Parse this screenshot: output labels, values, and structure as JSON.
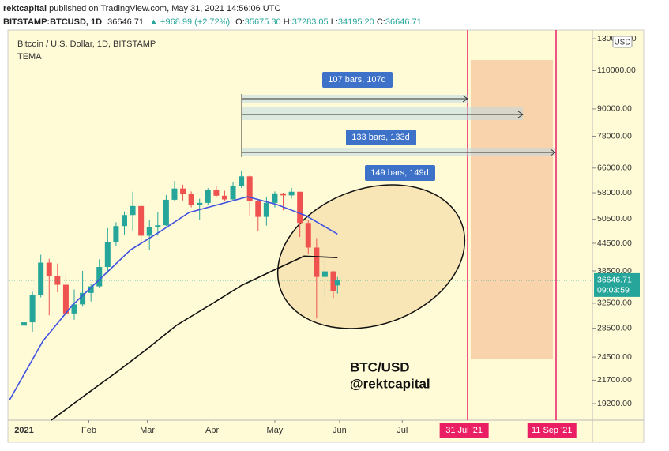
{
  "header": {
    "author": "rektcapital",
    "published": "published on TradingView.com, May 31, 2021 14:56:06 UTC",
    "symbol": "BITSTAMP:BTCUSD, 1D",
    "last": "36646.71",
    "change": "▲ +968.99 (+2.72%)",
    "ohlc": [
      {
        "label": "O:",
        "value": "35675.30"
      },
      {
        "label": "H:",
        "value": "37283.05"
      },
      {
        "label": "L:",
        "value": "34195.20"
      },
      {
        "label": "C:",
        "value": "36646.71"
      }
    ]
  },
  "chart_data": {
    "type": "candlestick",
    "title": "Bitcoin / U.S. Dollar, 1D, BITSTAMP",
    "subtitle": "TEMA",
    "log_scale": true,
    "currency": "USD",
    "xlim": [
      "2020-12-25",
      "2021-09-30"
    ],
    "ylim": [
      17600,
      135000
    ],
    "xticks": [
      {
        "value": "2021-01-01",
        "label": "2021"
      },
      {
        "value": "2021-02-01",
        "label": "Feb"
      },
      {
        "value": "2021-03-01",
        "label": "Mar"
      },
      {
        "value": "2021-04-01",
        "label": "Apr"
      },
      {
        "value": "2021-05-01",
        "label": "May"
      },
      {
        "value": "2021-06-01",
        "label": "Jun"
      },
      {
        "value": "2021-07-01",
        "label": "Jul"
      }
    ],
    "marked_dates": [
      {
        "value": "2021-07-31",
        "label": "31 Jul '21"
      },
      {
        "value": "2021-09-11",
        "label": "11 Sep '21"
      }
    ],
    "yticks": [
      {
        "value": 130000,
        "label": "130000.00"
      },
      {
        "value": 110000,
        "label": "110000.00"
      },
      {
        "value": 90000,
        "label": "90000.00"
      },
      {
        "value": 78000,
        "label": "78000.00"
      },
      {
        "value": 66000,
        "label": "66000.00"
      },
      {
        "value": 58000,
        "label": "58000.00"
      },
      {
        "value": 50500,
        "label": "50500.00"
      },
      {
        "value": 44500,
        "label": "44500.00"
      },
      {
        "value": 38500,
        "label": "38500.00"
      },
      {
        "value": 32500,
        "label": "32500.00"
      },
      {
        "value": 28500,
        "label": "28500.00"
      },
      {
        "value": 24500,
        "label": "24500.00"
      },
      {
        "value": 21700,
        "label": "21700.00"
      },
      {
        "value": 19200,
        "label": "19200.00"
      }
    ],
    "candles": {
      "up_color": "#26a69a",
      "down_color": "#ef5350",
      "x": [
        "2021-01-01",
        "2021-01-05",
        "2021-01-09",
        "2021-01-13",
        "2021-01-17",
        "2021-01-21",
        "2021-01-25",
        "2021-01-29",
        "2021-02-02",
        "2021-02-06",
        "2021-02-10",
        "2021-02-14",
        "2021-02-18",
        "2021-02-22",
        "2021-02-26",
        "2021-03-02",
        "2021-03-06",
        "2021-03-10",
        "2021-03-14",
        "2021-03-18",
        "2021-03-22",
        "2021-03-26",
        "2021-03-30",
        "2021-04-03",
        "2021-04-07",
        "2021-04-11",
        "2021-04-15",
        "2021-04-19",
        "2021-04-23",
        "2021-04-27",
        "2021-05-01",
        "2021-05-05",
        "2021-05-09",
        "2021-05-13",
        "2021-05-17",
        "2021-05-21",
        "2021-05-25",
        "2021-05-29",
        "2021-05-31"
      ],
      "open": [
        28900,
        29400,
        34000,
        40200,
        37400,
        35800,
        30800,
        32300,
        34300,
        35500,
        39300,
        44800,
        48700,
        51600,
        54100,
        46300,
        48400,
        48900,
        55900,
        59300,
        57600,
        54500,
        55000,
        58800,
        57100,
        56000,
        60000,
        63200,
        55600,
        51100,
        55000,
        57800,
        57200,
        58300,
        49500,
        43500,
        37300,
        38400,
        35675.3
      ],
      "high": [
        29700,
        34500,
        41900,
        41000,
        40000,
        37800,
        34900,
        38500,
        36000,
        40900,
        48200,
        49700,
        52600,
        58300,
        54200,
        50200,
        52400,
        57300,
        61700,
        60500,
        58400,
        56200,
        59400,
        60000,
        58600,
        61300,
        64900,
        63600,
        56000,
        56600,
        58400,
        58000,
        59500,
        58300,
        50200,
        45700,
        40800,
        38500,
        37283.05
      ],
      "low": [
        28300,
        28000,
        33500,
        30500,
        34400,
        30000,
        29800,
        31900,
        32800,
        35200,
        38000,
        43800,
        46600,
        47600,
        44900,
        43000,
        46300,
        48700,
        55600,
        55700,
        53700,
        50400,
        54400,
        56800,
        55600,
        55900,
        59500,
        51300,
        47500,
        48800,
        53700,
        52900,
        56300,
        46000,
        42100,
        30000,
        33500,
        33400,
        34195.2
      ],
      "close": [
        29400,
        34000,
        40200,
        37400,
        35800,
        30800,
        32300,
        34300,
        35500,
        39300,
        44800,
        48700,
        51600,
        54100,
        46300,
        48400,
        48900,
        55900,
        59300,
        57600,
        54500,
        55000,
        58800,
        57100,
        56000,
        60000,
        63200,
        55600,
        51100,
        55000,
        57800,
        57200,
        58300,
        49500,
        43500,
        37300,
        38400,
        34700,
        36646.71
      ]
    },
    "series": [
      {
        "color": "#3f51e0",
        "x": [
          "2020-12-25",
          "2021-01-10",
          "2021-01-24",
          "2021-02-07",
          "2021-02-21",
          "2021-03-07",
          "2021-03-21",
          "2021-04-04",
          "2021-04-18",
          "2021-05-02",
          "2021-05-16",
          "2021-05-31"
        ],
        "values": [
          19550,
          26650,
          32130,
          37170,
          43000,
          47300,
          52300,
          54500,
          56800,
          54500,
          51400,
          46700
        ]
      },
      {
        "color": "#111111",
        "x": [
          "2021-01-14",
          "2021-02-01",
          "2021-02-15",
          "2021-03-01",
          "2021-03-15",
          "2021-04-01",
          "2021-04-15",
          "2021-05-01",
          "2021-05-15",
          "2021-05-31"
        ],
        "values": [
          17600,
          20360,
          22770,
          25600,
          28950,
          32420,
          35650,
          38740,
          41600,
          41270
        ]
      }
    ],
    "last_price": {
      "value": 36646.71,
      "label": "36646.71",
      "countdown": "09:03:59"
    },
    "annotations": {
      "range1": "107 bars, 107d",
      "range2": "133 bars, 133d",
      "range3": "149 bars, 149d",
      "watermark_title": "BTC/USD",
      "watermark_handle": "@rektcapital"
    }
  }
}
